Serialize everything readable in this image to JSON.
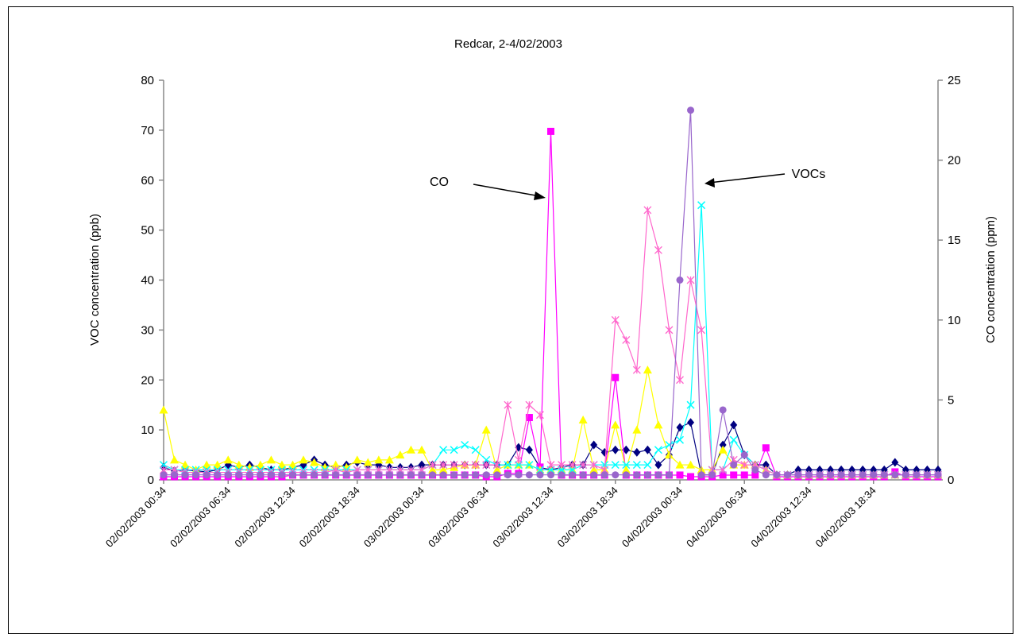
{
  "chart_data": {
    "type": "line",
    "title": "Redcar, 2-4/02/2003",
    "ylabel": "VOC concentration (ppb)",
    "y2label": "CO concentration (ppm)",
    "ylim": [
      0,
      80
    ],
    "y2lim": [
      0,
      25
    ],
    "yticks": [
      "0",
      "10",
      "20",
      "30",
      "40",
      "50",
      "60",
      "70",
      "80"
    ],
    "y2ticks": [
      "0",
      "5",
      "10",
      "15",
      "20",
      "25"
    ],
    "xtick_labels": [
      "02/02/2003 00:34",
      "02/02/2003 06:34",
      "02/02/2003 12:34",
      "02/02/2003 18:34",
      "03/02/2003 00:34",
      "03/02/2003 06:34",
      "03/02/2003 12:34",
      "03/02/2003 18:34",
      "04/02/2003 00:34",
      "04/02/2003 06:34",
      "04/02/2003 12:34",
      "04/02/2003 18:34"
    ],
    "x_hours": [
      0,
      1,
      2,
      3,
      4,
      5,
      6,
      7,
      8,
      9,
      10,
      11,
      12,
      13,
      14,
      15,
      16,
      17,
      18,
      19,
      20,
      21,
      22,
      23,
      24,
      25,
      26,
      27,
      28,
      29,
      30,
      31,
      32,
      33,
      34,
      35,
      36,
      37,
      38,
      39,
      40,
      41,
      42,
      43,
      44,
      45,
      46,
      47,
      48,
      49,
      50,
      51,
      52,
      53,
      54,
      55,
      56,
      57,
      58,
      59,
      60,
      61,
      62,
      63,
      64,
      65,
      66,
      67,
      68,
      69,
      70,
      71,
      72
    ],
    "grid": false,
    "legend": "none",
    "annotations": [
      {
        "text": "CO",
        "target_hour": 36,
        "target_value": 69
      },
      {
        "text": "VOCs",
        "target_hour": 50,
        "target_value": 60
      }
    ],
    "series": [
      {
        "color": "#000080",
        "marker": "diamond",
        "axis": "left",
        "values": [
          2.5,
          1.8,
          2,
          1.8,
          1.6,
          2,
          3,
          2.5,
          3,
          2.5,
          2,
          2,
          2.5,
          3,
          4,
          3,
          2.5,
          3,
          3.5,
          3,
          3,
          2.5,
          2.5,
          2.5,
          3,
          3,
          3,
          3,
          3,
          3,
          3,
          3,
          3,
          6.5,
          6,
          2.5,
          2,
          2.5,
          3,
          3,
          7,
          5.5,
          6,
          6,
          5.5,
          6,
          3,
          5,
          10.5,
          11.5,
          1,
          1,
          7,
          11,
          5,
          3,
          3,
          1,
          1,
          2,
          2,
          2,
          2,
          2,
          2,
          2,
          2,
          2,
          3.5,
          2,
          2,
          2,
          2
        ]
      },
      {
        "color": "#ff00ff",
        "marker": "square",
        "axis": "right",
        "values": [
          0.2,
          0.2,
          0.2,
          0.2,
          0.2,
          0.2,
          0.2,
          0.2,
          0.2,
          0.2,
          0.2,
          0.2,
          0.3,
          0.3,
          0.3,
          0.3,
          0.3,
          0.3,
          0.3,
          0.3,
          0.3,
          0.3,
          0.3,
          0.3,
          0.3,
          0.3,
          0.3,
          0.3,
          0.3,
          0.3,
          0.2,
          0.2,
          0.4,
          0.4,
          3.9,
          0.8,
          21.8,
          0.3,
          0.3,
          0.3,
          0.3,
          0.3,
          6.4,
          0.3,
          0.3,
          0.3,
          0.3,
          0.3,
          0.3,
          0.2,
          0.2,
          0.2,
          0.3,
          0.3,
          0.3,
          0.3,
          2,
          0.2,
          0.2,
          0.2,
          0.2,
          0.2,
          0.2,
          0.2,
          0.2,
          0.2,
          0.2,
          0.2,
          0.5,
          0.2,
          0.2,
          0.2,
          0.2
        ]
      },
      {
        "color": "#ffff00",
        "marker": "triangle",
        "axis": "left",
        "values": [
          14,
          4,
          3,
          2,
          3,
          3,
          4,
          3,
          2.5,
          3,
          4,
          3,
          3,
          4,
          3.5,
          2.5,
          3,
          2.5,
          4,
          3.5,
          4,
          4,
          5,
          6,
          6,
          2,
          2,
          2.5,
          3,
          3,
          10,
          2,
          3,
          3,
          3,
          2,
          2,
          2,
          2,
          12,
          2,
          2,
          11,
          2,
          10,
          22,
          11,
          5,
          3,
          3,
          2,
          2,
          6,
          3,
          3,
          3,
          2,
          1,
          1,
          1,
          1,
          1,
          1,
          1,
          1,
          1,
          1,
          1,
          1,
          1,
          1,
          1,
          1
        ]
      },
      {
        "color": "#00ffff",
        "marker": "x",
        "axis": "left",
        "values": [
          3,
          2,
          2,
          2,
          2,
          2,
          2,
          2,
          2,
          2,
          2,
          2,
          2,
          2,
          2,
          2,
          2,
          2,
          2,
          2,
          2,
          2,
          2,
          2,
          2,
          3,
          6,
          6,
          7,
          6,
          4,
          3,
          3,
          3,
          3,
          2,
          2,
          2,
          2,
          3,
          3,
          3,
          3,
          3,
          3,
          3,
          6,
          7,
          8,
          15,
          55,
          2,
          2,
          8,
          5,
          3,
          2,
          1,
          1,
          1,
          1,
          1,
          1,
          1,
          1,
          1,
          1,
          1,
          1,
          1,
          1,
          1,
          1
        ]
      },
      {
        "color": "#ff66cc",
        "marker": "star",
        "axis": "left",
        "values": [
          2,
          2,
          1.5,
          1.5,
          1.5,
          1.5,
          1.5,
          1.5,
          1.5,
          1.5,
          1.5,
          1.5,
          1.5,
          1.5,
          1.5,
          1.5,
          2,
          1.5,
          2,
          2,
          2,
          2,
          2,
          2,
          2,
          3,
          3,
          3,
          3,
          3,
          3,
          3,
          15,
          4,
          15,
          13,
          3,
          3,
          3,
          3,
          3,
          2,
          32,
          28,
          22,
          54,
          46,
          30,
          20,
          40,
          30,
          2,
          2,
          4,
          3,
          3,
          2,
          1,
          1,
          1,
          1,
          1,
          1,
          1,
          1,
          1,
          1,
          1,
          1,
          1,
          1,
          1,
          1
        ]
      },
      {
        "color": "#9966cc",
        "marker": "circle",
        "axis": "left",
        "values": [
          1,
          1,
          1,
          1,
          1,
          1,
          1,
          1,
          1,
          1,
          1,
          1,
          1,
          1,
          1,
          1,
          1,
          1,
          1,
          1,
          1,
          1,
          1,
          1,
          1,
          1,
          1,
          1,
          1,
          1,
          1,
          1,
          1,
          1,
          1,
          1,
          1,
          1,
          1,
          1,
          1,
          1,
          1,
          1,
          1,
          1,
          1,
          1,
          40,
          74,
          1,
          1,
          14,
          3,
          5,
          2,
          1,
          1,
          1,
          1,
          1,
          1,
          1,
          1,
          1,
          1,
          1,
          1,
          1,
          1,
          1,
          1,
          1
        ]
      }
    ]
  }
}
